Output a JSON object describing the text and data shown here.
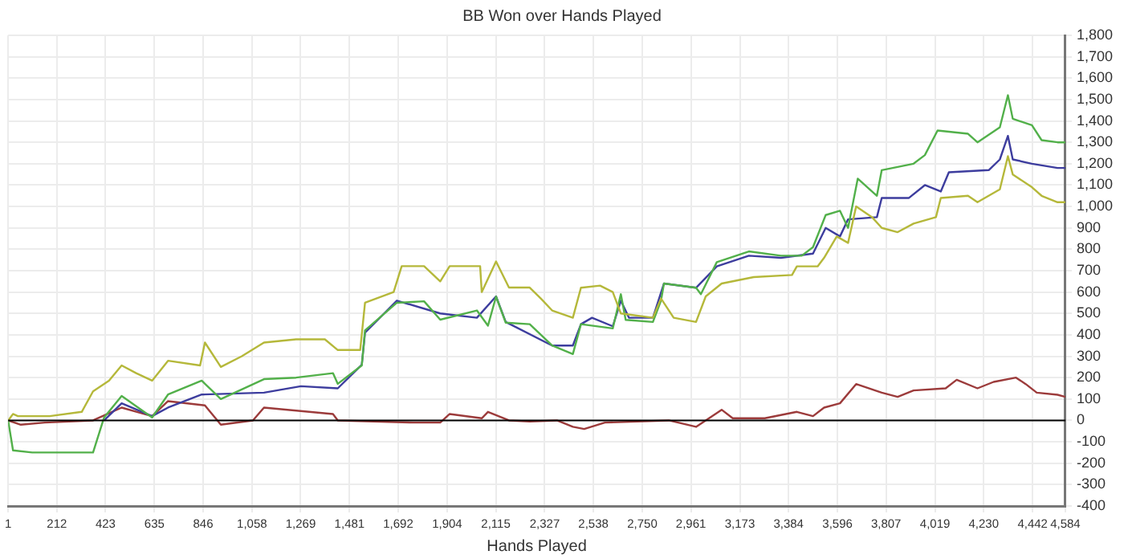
{
  "chart_data": {
    "type": "line",
    "title": "BB Won over Hands Played",
    "xlabel": "Hands Played",
    "xlim": [
      1,
      4584
    ],
    "xticks": [
      1,
      212,
      423,
      635,
      846,
      {
        "value": 1058,
        "label": "1,058"
      },
      {
        "value": 1269,
        "label": "1,269"
      },
      {
        "value": 1481,
        "label": "1,481"
      },
      {
        "value": 1692,
        "label": "1,692"
      },
      {
        "value": 1904,
        "label": "1,904"
      },
      {
        "value": 2115,
        "label": "2,115"
      },
      {
        "value": 2327,
        "label": "2,327"
      },
      {
        "value": 2538,
        "label": "2,538"
      },
      {
        "value": 2750,
        "label": "2,750"
      },
      {
        "value": 2961,
        "label": "2,961"
      },
      {
        "value": 3173,
        "label": "3,173"
      },
      {
        "value": 3384,
        "label": "3,384"
      },
      {
        "value": 3596,
        "label": "3,596"
      },
      {
        "value": 3807,
        "label": "3,807"
      },
      {
        "value": 4019,
        "label": "4,019"
      },
      {
        "value": 4230,
        "label": "4,230"
      },
      {
        "value": 4442,
        "label": "4,442"
      },
      {
        "value": 4584,
        "label": "4,584"
      }
    ],
    "ylim": [
      -400,
      1800
    ],
    "yticks": [
      -400,
      -300,
      -200,
      -100,
      0,
      100,
      200,
      300,
      400,
      500,
      600,
      700,
      800,
      900,
      {
        "value": 1000,
        "label": "1,000"
      },
      {
        "value": 1100,
        "label": "1,100"
      },
      {
        "value": 1200,
        "label": "1,200"
      },
      {
        "value": 1300,
        "label": "1,300"
      },
      {
        "value": 1400,
        "label": "1,400"
      },
      {
        "value": 1500,
        "label": "1,500"
      },
      {
        "value": 1600,
        "label": "1,600"
      },
      {
        "value": 1700,
        "label": "1,700"
      },
      {
        "value": 1800,
        "label": "1,800"
      }
    ],
    "grid": true,
    "legend": false,
    "marker": "none",
    "line_style": "solid",
    "ref_lines": [
      {
        "axis": "y",
        "value": 0,
        "color": "#000000"
      }
    ],
    "series": [
      {
        "color": "#b5b83a",
        "x": [
          1,
          22,
          43,
          181,
          320,
          369,
          438,
          493,
          556,
          625,
          694,
          833,
          854,
          923,
          1014,
          1110,
          1249,
          1374,
          1430,
          1527,
          1548,
          1672,
          1707,
          1804,
          1874,
          1915,
          2047,
          2054,
          2116,
          2172,
          2262,
          2310,
          2359,
          2449,
          2484,
          2567,
          2622,
          2657,
          2796,
          2831,
          2886,
          2983,
          3025,
          3094,
          3233,
          3399,
          3420,
          3510,
          3538,
          3593,
          3642,
          3677,
          3746,
          3788,
          3857,
          3926,
          4023,
          4044,
          4162,
          4203,
          4300,
          4335,
          4356,
          4439,
          4481,
          4550,
          4584
        ],
        "values": [
          0,
          30,
          20,
          20,
          40,
          136,
          186,
          257,
          221,
          186,
          279,
          257,
          364,
          250,
          300,
          364,
          379,
          379,
          329,
          329,
          550,
          600,
          721,
          721,
          650,
          721,
          721,
          600,
          743,
          621,
          621,
          570,
          514,
          480,
          620,
          630,
          600,
          500,
          480,
          570,
          480,
          460,
          580,
          640,
          670,
          680,
          720,
          720,
          760,
          860,
          830,
          1000,
          950,
          900,
          880,
          920,
          950,
          1040,
          1050,
          1020,
          1080,
          1235,
          1150,
          1090,
          1050,
          1020,
          1020
        ]
      },
      {
        "color": "#52b04a",
        "x": [
          1,
          22,
          105,
          369,
          417,
          493,
          625,
          694,
          840,
          923,
          1110,
          1249,
          1409,
          1430,
          1534,
          1548,
          1686,
          1804,
          1874,
          2033,
          2081,
          2116,
          2158,
          2262,
          2359,
          2449,
          2484,
          2622,
          2657,
          2678,
          2796,
          2831,
          2844,
          2983,
          3004,
          3073,
          3212,
          3351,
          3441,
          3490,
          3545,
          3607,
          3642,
          3684,
          3767,
          3788,
          3926,
          3975,
          4030,
          4162,
          4203,
          4300,
          4335,
          4356,
          4439,
          4481,
          4550,
          4584
        ],
        "values": [
          0,
          -140,
          -150,
          -150,
          14,
          114,
          14,
          121,
          186,
          100,
          193,
          200,
          221,
          171,
          257,
          421,
          550,
          557,
          471,
          514,
          443,
          579,
          457,
          450,
          350,
          310,
          450,
          430,
          590,
          470,
          460,
          560,
          640,
          620,
          590,
          740,
          790,
          770,
          770,
          810,
          960,
          980,
          900,
          1130,
          1050,
          1170,
          1200,
          1240,
          1355,
          1340,
          1300,
          1370,
          1520,
          1410,
          1380,
          1310,
          1300,
          1300
        ]
      },
      {
        "color": "#3d3d9e",
        "x": [
          417,
          493,
          625,
          694,
          840,
          1110,
          1270,
          1430,
          1534,
          1548,
          1686,
          1874,
          2033,
          2116,
          2158,
          2359,
          2449,
          2484,
          2532,
          2622,
          2657,
          2692,
          2796,
          2844,
          2983,
          3073,
          3212,
          3351,
          3490,
          3545,
          3607,
          3642,
          3767,
          3788,
          3906,
          3975,
          4044,
          4079,
          4252,
          4300,
          4335,
          4356,
          4439,
          4550,
          4584
        ],
        "values": [
          0,
          80,
          20,
          60,
          121,
          130,
          160,
          150,
          260,
          410,
          560,
          500,
          480,
          580,
          460,
          350,
          350,
          450,
          480,
          440,
          560,
          480,
          480,
          640,
          620,
          720,
          770,
          760,
          780,
          900,
          860,
          940,
          950,
          1040,
          1040,
          1100,
          1070,
          1160,
          1170,
          1220,
          1330,
          1220,
          1200,
          1180,
          1180
        ]
      },
      {
        "color": "#9c3b3b",
        "x": [
          1,
          56,
          160,
          369,
          493,
          625,
          694,
          854,
          923,
          1062,
          1110,
          1409,
          1430,
          1756,
          1874,
          1915,
          2054,
          2081,
          2172,
          2262,
          2380,
          2449,
          2498,
          2588,
          2865,
          2983,
          3025,
          3094,
          3142,
          3281,
          3420,
          3490,
          3538,
          3607,
          3677,
          3788,
          3857,
          3926,
          4065,
          4113,
          4203,
          4273,
          4370,
          4412,
          4460,
          4550,
          4584
        ],
        "values": [
          0,
          -20,
          -10,
          0,
          60,
          20,
          90,
          70,
          -20,
          0,
          60,
          30,
          0,
          -10,
          -10,
          30,
          10,
          40,
          0,
          -5,
          0,
          -30,
          -40,
          -10,
          0,
          -30,
          0,
          50,
          10,
          10,
          40,
          20,
          60,
          80,
          170,
          130,
          110,
          140,
          150,
          190,
          150,
          180,
          200,
          170,
          130,
          120,
          110
        ]
      }
    ]
  }
}
